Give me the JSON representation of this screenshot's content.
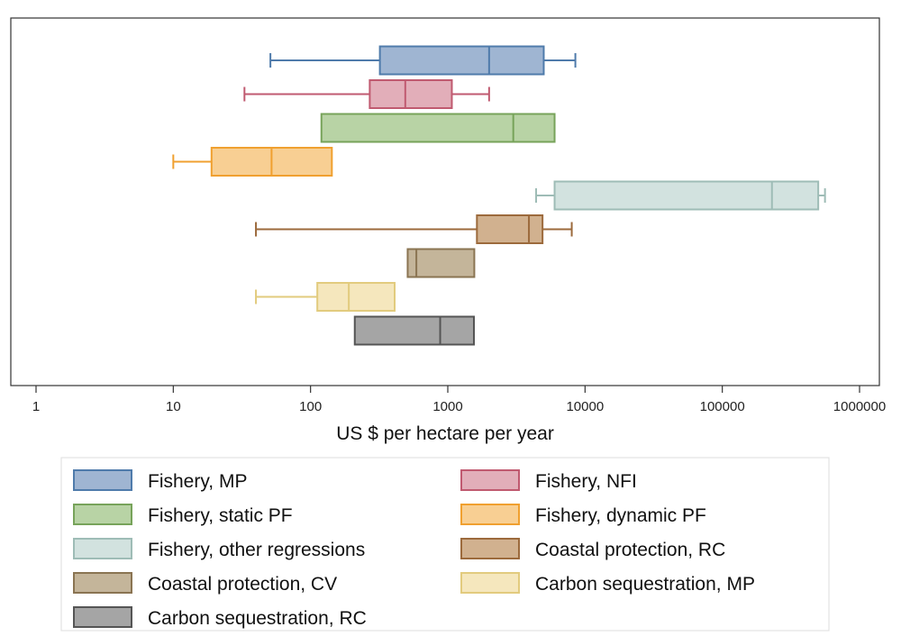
{
  "chart_data": {
    "type": "box",
    "orientation": "horizontal",
    "xscale": "log",
    "xlim": [
      1,
      1000000
    ],
    "xticks": [
      1,
      10,
      100,
      1000,
      10000,
      100000,
      1000000
    ],
    "xtick_labels": [
      "1",
      "10",
      "100",
      "1000",
      "10000",
      "100000",
      "1000000"
    ],
    "xlabel": "US $ per hectare per year",
    "ylabel": "",
    "title": "",
    "grid": false,
    "legend_position": "bottom",
    "series": [
      {
        "name": "Fishery, MP",
        "color": "#4f7bab",
        "fill": "#9fb5d2",
        "whisker_low": 51,
        "q1": 320,
        "median": 2000,
        "q3": 5000,
        "whisker_high": 8500
      },
      {
        "name": "Fishery, NFI",
        "color": "#c05a70",
        "fill": "#e2aeb9",
        "whisker_low": 33,
        "q1": 270,
        "median": 490,
        "q3": 1070,
        "whisker_high": 2000
      },
      {
        "name": "Fishery, static PF",
        "color": "#77a35a",
        "fill": "#b8d3a5",
        "whisker_low": null,
        "q1": 120,
        "median": 3000,
        "q3": 6000,
        "whisker_high": null
      },
      {
        "name": "Fishery, dynamic PF",
        "color": "#f0a030",
        "fill": "#f8cf93",
        "whisker_low": 10,
        "q1": 19,
        "median": 52,
        "q3": 143,
        "whisker_high": null
      },
      {
        "name": "Fishery, other regressions",
        "color": "#9ebcb6",
        "fill": "#d2e2df",
        "whisker_low": 4400,
        "q1": 6000,
        "median": 230000,
        "q3": 500000,
        "whisker_high": 560000
      },
      {
        "name": "Coastal protection, RC",
        "color": "#9c6a3c",
        "fill": "#d1b18f",
        "whisker_low": 40,
        "q1": 1630,
        "median": 3900,
        "q3": 4900,
        "whisker_high": 8000
      },
      {
        "name": "Coastal protection, CV",
        "color": "#8a7452",
        "fill": "#c4b59a",
        "whisker_low": null,
        "q1": 510,
        "median": 590,
        "q3": 1560,
        "whisker_high": null
      },
      {
        "name": "Carbon sequestration, MP",
        "color": "#e2cb7e",
        "fill": "#f5e7bd",
        "whisker_low": 40,
        "q1": 112,
        "median": 190,
        "q3": 410,
        "whisker_high": null
      },
      {
        "name": "Carbon sequestration, RC",
        "color": "#555555",
        "fill": "#a5a5a5",
        "whisker_low": null,
        "q1": 210,
        "median": 880,
        "q3": 1550,
        "whisker_high": null
      }
    ]
  }
}
